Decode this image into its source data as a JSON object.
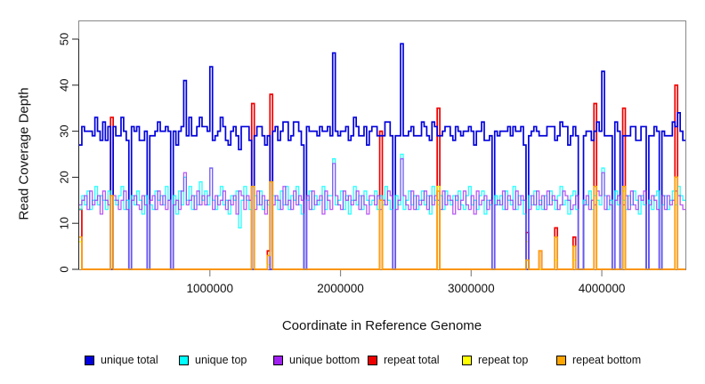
{
  "legend": {
    "items": [
      {
        "label": "unique total",
        "color": "#0000DC"
      },
      {
        "label": "unique top",
        "color": "#00FFFF"
      },
      {
        "label": "unique bottom",
        "color": "#A020F0"
      },
      {
        "label": "repeat total",
        "color": "#EE0000"
      },
      {
        "label": "repeat top",
        "color": "#FFFF00"
      },
      {
        "label": "repeat bottom",
        "color": "#FFA500"
      }
    ]
  },
  "chart_data": {
    "type": "line",
    "subtype": "step-coverage-plot",
    "title": "",
    "xlabel": "Coordinate in Reference Genome",
    "ylabel": "Read Coverage Depth",
    "xlim": [
      0,
      4640000
    ],
    "ylim": [
      0,
      50
    ],
    "grid": false,
    "legend_position": "bottom",
    "x_ticks": [
      1000000,
      2000000,
      3000000,
      4000000
    ],
    "x_tick_labels": [
      "1000000",
      "2000000",
      "3000000",
      "4000000"
    ],
    "y_ticks": [
      0,
      10,
      20,
      30,
      40,
      50
    ],
    "y_tick_labels": [
      "0",
      "10",
      "20",
      "30",
      "40",
      "50"
    ],
    "bin_size": 20000,
    "n_bins": 232,
    "series_order_drawn": [
      "repeat total",
      "repeat top",
      "unique total",
      "unique top",
      "unique bottom",
      "repeat bottom"
    ],
    "unique_total_rule": "unique_total[i] = unique_top[i] + unique_bottom[i]",
    "unique_top": [
      13,
      16,
      14,
      17,
      13,
      15,
      18,
      14,
      16,
      15,
      13,
      17,
      0,
      15,
      14,
      16,
      18,
      13,
      15,
      0,
      16,
      14,
      17,
      15,
      12,
      16,
      0,
      14,
      13,
      17,
      15,
      16,
      14,
      18,
      15,
      0,
      16,
      12,
      17,
      14,
      20,
      15,
      18,
      13,
      16,
      14,
      19,
      15,
      17,
      14,
      22,
      15,
      13,
      16,
      18,
      14,
      15,
      12,
      16,
      15,
      17,
      9,
      15,
      18,
      15,
      13,
      0,
      16,
      14,
      17,
      13,
      15,
      14,
      0,
      16,
      15,
      13,
      17,
      14,
      18,
      13,
      16,
      15,
      18,
      14,
      12,
      0,
      15,
      17,
      13,
      16,
      14,
      15,
      18,
      13,
      16,
      16,
      24,
      14,
      15,
      17,
      13,
      16,
      12,
      15,
      18,
      14,
      16,
      13,
      17,
      15,
      14,
      15,
      17,
      13,
      16,
      14,
      18,
      15,
      13,
      0,
      16,
      14,
      25,
      13,
      15,
      17,
      14,
      16,
      13,
      15,
      17,
      14,
      16,
      12,
      18,
      15,
      14,
      16,
      13,
      17,
      15,
      14,
      16,
      15,
      17,
      14,
      13,
      16,
      18,
      14,
      15,
      13,
      16,
      17,
      12,
      15,
      14,
      0,
      16,
      14,
      16,
      13,
      17,
      15,
      14,
      18,
      13,
      16,
      15,
      12,
      0,
      16,
      14,
      17,
      13,
      15,
      13,
      16,
      14,
      17,
      15,
      13,
      16,
      18,
      14,
      15,
      12,
      16,
      17,
      13,
      0,
      0,
      15,
      14,
      17,
      13,
      16,
      15,
      14,
      22,
      16,
      13,
      15,
      0,
      17,
      14,
      0,
      15,
      13,
      16,
      14,
      17,
      15,
      12,
      16,
      14,
      0,
      15,
      13,
      16,
      17,
      0,
      14,
      16,
      13,
      15,
      17,
      14,
      18,
      16,
      15
    ],
    "unique_bottom": [
      14,
      15,
      16,
      13,
      17,
      14,
      15,
      16,
      12,
      17,
      15,
      14,
      0,
      16,
      15,
      13,
      15,
      17,
      13,
      0,
      15,
      16,
      14,
      13,
      16,
      14,
      0,
      15,
      16,
      13,
      17,
      14,
      16,
      13,
      15,
      0,
      14,
      15,
      13,
      17,
      21,
      14,
      15,
      16,
      13,
      17,
      14,
      16,
      14,
      16,
      22,
      13,
      16,
      14,
      15,
      17,
      13,
      15,
      14,
      16,
      12,
      17,
      16,
      13,
      16,
      15,
      0,
      13,
      17,
      14,
      16,
      12,
      15,
      0,
      14,
      16,
      15,
      13,
      18,
      14,
      15,
      13,
      17,
      14,
      16,
      15,
      0,
      16,
      13,
      17,
      14,
      15,
      16,
      12,
      17,
      15,
      13,
      23,
      16,
      14,
      13,
      17,
      15,
      16,
      14,
      15,
      17,
      13,
      16,
      14,
      12,
      16,
      16,
      14,
      16,
      13,
      15,
      14,
      17,
      16,
      0,
      13,
      15,
      24,
      16,
      14,
      13,
      17,
      13,
      16,
      14,
      15,
      17,
      13,
      16,
      14,
      16,
      15,
      13,
      17,
      14,
      16,
      15,
      12,
      16,
      13,
      15,
      17,
      14,
      13,
      16,
      12,
      17,
      14,
      15,
      16,
      13,
      15,
      0,
      14,
      15,
      14,
      17,
      13,
      16,
      15,
      13,
      17,
      14,
      16,
      15,
      0,
      13,
      16,
      14,
      17,
      14,
      16,
      13,
      17,
      14,
      16,
      15,
      13,
      14,
      17,
      16,
      15,
      13,
      14,
      16,
      0,
      0,
      14,
      16,
      13,
      15,
      14,
      17,
      16,
      21,
      13,
      16,
      14,
      0,
      15,
      16,
      0,
      14,
      16,
      13,
      17,
      14,
      13,
      16,
      15,
      17,
      0,
      14,
      16,
      15,
      13,
      0,
      16,
      13,
      16,
      14,
      15,
      17,
      16,
      14,
      13
    ],
    "repeat_baseline": 0,
    "repeat_spikes": [
      {
        "bin": 0,
        "total": 13,
        "top": 6,
        "bottom": 7
      },
      {
        "bin": 12,
        "total": 33,
        "top": 17,
        "bottom": 16
      },
      {
        "bin": 66,
        "total": 36,
        "top": 18,
        "bottom": 18
      },
      {
        "bin": 72,
        "total": 4,
        "top": 1,
        "bottom": 3
      },
      {
        "bin": 73,
        "total": 38,
        "top": 19,
        "bottom": 19
      },
      {
        "bin": 115,
        "total": 30,
        "top": 15,
        "bottom": 15
      },
      {
        "bin": 137,
        "total": 35,
        "top": 18,
        "bottom": 17
      },
      {
        "bin": 171,
        "total": 8,
        "top": 6,
        "bottom": 2
      },
      {
        "bin": 176,
        "total": 4,
        "top": 0,
        "bottom": 4
      },
      {
        "bin": 182,
        "total": 9,
        "top": 2,
        "bottom": 7
      },
      {
        "bin": 189,
        "total": 7,
        "top": 2,
        "bottom": 5
      },
      {
        "bin": 197,
        "total": 36,
        "top": 18,
        "bottom": 18
      },
      {
        "bin": 208,
        "total": 35,
        "top": 17,
        "bottom": 18
      },
      {
        "bin": 228,
        "total": 40,
        "top": 20,
        "bottom": 20
      }
    ]
  }
}
